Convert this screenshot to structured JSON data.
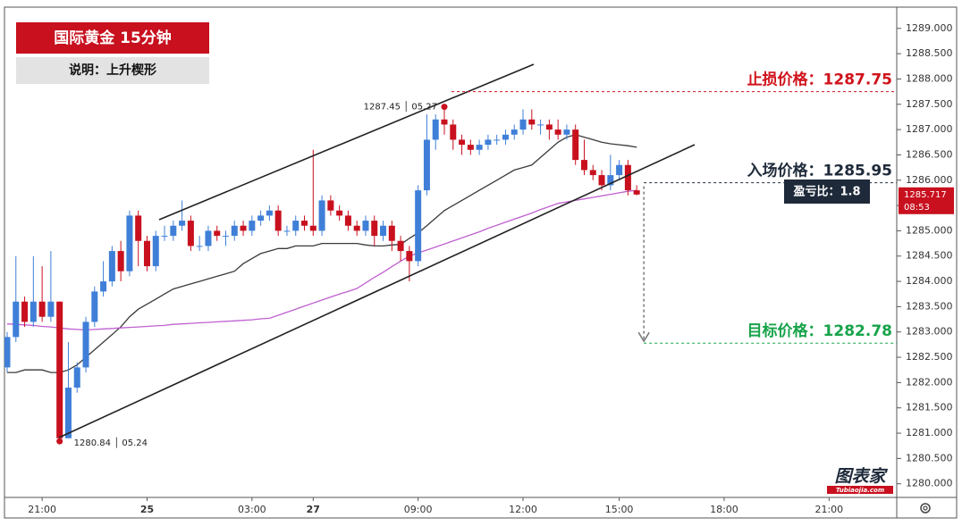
{
  "chart_data": {
    "type": "candlestick",
    "title": "国际黄金 15分钟",
    "subtitle": "说明：上升楔形",
    "up_color": "#3f7fd8",
    "down_color": "#c8101e",
    "categories": [
      null,
      null,
      null,
      null,
      "21:00",
      null,
      null,
      null,
      null,
      null,
      null,
      null,
      null,
      null,
      null,
      null,
      "25",
      null,
      null,
      null,
      null,
      null,
      null,
      null,
      null,
      null,
      null,
      null,
      "03:00",
      null,
      null,
      null,
      null,
      null,
      null,
      "27",
      null,
      null,
      null,
      null,
      null,
      null,
      null,
      null,
      null,
      null,
      null,
      "09:00",
      null,
      null,
      null,
      null,
      null,
      null,
      null,
      null,
      null,
      null,
      null,
      "12:00",
      null,
      null,
      null,
      null,
      null,
      null,
      null,
      null,
      null,
      null,
      "15:00",
      null,
      null,
      null,
      null,
      null,
      null,
      null,
      null,
      null,
      null,
      null,
      "18:00",
      null,
      null,
      null,
      null,
      null,
      null,
      null,
      null,
      null,
      null,
      null,
      "21:00"
    ],
    "open": [
      1282.3,
      1282.9,
      1283.6,
      1283.2,
      1283.6,
      1283.3,
      1283.6,
      1280.9,
      1281.9,
      1282.3,
      1283.2,
      1283.8,
      1284.0,
      1284.6,
      1284.2,
      1285.3,
      1284.8,
      1284.3,
      1284.9,
      1284.9,
      1285.1,
      1285.2,
      1284.7,
      1284.7,
      1285.0,
      1284.9,
      1284.9,
      1285.1,
      1285.0,
      1285.2,
      1285.3,
      1285.4,
      1285.0,
      1285.0,
      1285.2,
      1285.1,
      1285.0,
      1285.6,
      1285.4,
      1285.3,
      1285.1,
      1285.0,
      1285.2,
      1284.9,
      1285.1,
      1284.8,
      1284.6,
      1284.4,
      1285.8,
      1286.8,
      1287.2,
      1287.1,
      1286.8,
      1286.7,
      1286.6,
      1286.7,
      1286.8,
      1286.8,
      1286.9,
      1287.0,
      1287.2,
      1287.1,
      1287.1,
      1287.0,
      1286.9,
      1287.0,
      1286.4,
      1286.2,
      1286.1,
      1285.9,
      1286.1,
      1286.3,
      1285.8,
      null,
      null,
      null,
      null,
      null,
      null,
      null,
      null,
      null,
      null,
      null,
      null,
      null,
      null,
      null,
      null,
      null,
      null,
      null,
      null,
      null,
      null
    ],
    "high": [
      1283.0,
      1284.5,
      1283.7,
      1284.5,
      1284.3,
      1284.6,
      1283.6,
      1282.8,
      1282.4,
      1283.3,
      1283.9,
      1284.4,
      1284.7,
      1284.8,
      1285.4,
      1285.4,
      1284.9,
      1285.0,
      1285.1,
      1285.2,
      1285.6,
      1285.3,
      1284.9,
      1285.1,
      1285.1,
      1285.0,
      1285.2,
      1285.2,
      1285.3,
      1285.4,
      1285.5,
      1285.5,
      1285.1,
      1285.3,
      1285.3,
      1286.6,
      1285.7,
      1285.7,
      1285.5,
      1285.4,
      1285.2,
      1285.3,
      1285.3,
      1285.2,
      1285.2,
      1284.9,
      1284.7,
      1285.9,
      1287.3,
      1287.3,
      1287.45,
      1287.2,
      1286.9,
      1286.8,
      1286.8,
      1286.9,
      1286.9,
      1287.0,
      1287.1,
      1287.4,
      1287.4,
      1287.2,
      1287.2,
      1287.2,
      1287.1,
      1287.1,
      1286.8,
      1286.3,
      1286.2,
      1286.5,
      1286.4,
      1286.4,
      1285.9,
      null,
      null,
      null,
      null,
      null,
      null,
      null,
      null,
      null,
      null,
      null,
      null,
      null,
      null,
      null,
      null,
      null,
      null,
      null,
      null,
      null,
      null
    ],
    "low": [
      1282.2,
      1282.8,
      1283.1,
      1283.1,
      1283.2,
      1283.2,
      1280.84,
      1280.9,
      1281.8,
      1282.2,
      1283.1,
      1283.7,
      1283.9,
      1284.0,
      1284.1,
      1284.3,
      1284.2,
      1284.2,
      1284.8,
      1284.8,
      1285.0,
      1284.6,
      1284.6,
      1284.6,
      1284.8,
      1284.7,
      1284.8,
      1284.9,
      1284.9,
      1285.1,
      1285.2,
      1284.9,
      1284.9,
      1284.9,
      1285.0,
      1284.9,
      1284.9,
      1285.3,
      1285.2,
      1285.0,
      1284.9,
      1284.9,
      1284.7,
      1284.8,
      1284.6,
      1284.4,
      1284.0,
      1284.3,
      1285.7,
      1286.6,
      1286.9,
      1286.6,
      1286.5,
      1286.5,
      1286.5,
      1286.6,
      1286.7,
      1286.7,
      1286.8,
      1286.9,
      1287.0,
      1286.9,
      1286.8,
      1286.8,
      1286.8,
      1286.3,
      1286.1,
      1286.0,
      1285.8,
      1285.8,
      1286.0,
      1285.7,
      1285.7,
      null,
      null,
      null,
      null,
      null,
      null,
      null,
      null,
      null,
      null,
      null,
      null,
      null,
      null,
      null,
      null,
      null,
      null,
      null,
      null,
      null,
      null
    ],
    "close": [
      1282.9,
      1283.6,
      1283.2,
      1283.6,
      1283.3,
      1283.6,
      1280.9,
      1281.9,
      1282.3,
      1283.2,
      1283.8,
      1284.0,
      1284.6,
      1284.2,
      1285.3,
      1284.8,
      1284.3,
      1284.9,
      1284.9,
      1285.1,
      1285.2,
      1284.7,
      1284.7,
      1285.0,
      1284.9,
      1284.9,
      1285.1,
      1285.0,
      1285.2,
      1285.3,
      1285.4,
      1285.0,
      1285.0,
      1285.2,
      1285.1,
      1285.0,
      1285.6,
      1285.4,
      1285.3,
      1285.1,
      1285.0,
      1285.2,
      1284.9,
      1285.1,
      1284.8,
      1284.6,
      1284.4,
      1285.8,
      1286.8,
      1287.2,
      1287.1,
      1286.8,
      1286.7,
      1286.6,
      1286.7,
      1286.8,
      1286.8,
      1286.9,
      1287.0,
      1287.2,
      1287.1,
      1287.1,
      1287.0,
      1286.9,
      1287.0,
      1286.4,
      1286.2,
      1286.1,
      1285.9,
      1286.1,
      1286.3,
      1285.8,
      1285.717,
      null,
      null,
      null,
      null,
      null,
      null,
      null,
      null,
      null,
      null,
      null,
      null,
      null,
      null,
      null,
      null,
      null,
      null,
      null,
      null,
      null,
      null
    ],
    "series": [
      {
        "color": "#3a3a3a",
        "values": [
          1282.2,
          1282.2,
          1282.25,
          1282.25,
          1282.25,
          1282.2,
          1282.2,
          1282.25,
          1282.35,
          1282.5,
          1282.65,
          1282.8,
          1282.95,
          1283.1,
          1283.3,
          1283.45,
          1283.55,
          1283.65,
          1283.75,
          1283.85,
          1283.9,
          1283.95,
          1284.0,
          1284.05,
          1284.1,
          1284.15,
          1284.2,
          1284.35,
          1284.45,
          1284.55,
          1284.6,
          1284.65,
          1284.65,
          1284.7,
          1284.7,
          1284.7,
          1284.75,
          1284.75,
          1284.75,
          1284.75,
          1284.75,
          1284.72,
          1284.7,
          1284.7,
          1284.72,
          1284.73,
          1284.85,
          1284.96,
          1285.1,
          1285.25,
          1285.4,
          1285.5,
          1285.6,
          1285.7,
          1285.8,
          1285.9,
          1286.0,
          1286.1,
          1286.2,
          1286.25,
          1286.3,
          1286.45,
          1286.6,
          1286.75,
          1286.85,
          1286.9,
          1286.85,
          1286.8,
          1286.75,
          1286.72,
          1286.7,
          1286.68,
          1286.65,
          null,
          null,
          null,
          null,
          null,
          null,
          null,
          null,
          null,
          null,
          null,
          null,
          null,
          null,
          null,
          null,
          null,
          null,
          null,
          null,
          null,
          null
        ]
      },
      {
        "color": "#c060d0",
        "values": [
          1283.16,
          1283.15,
          1283.14,
          1283.13,
          1283.11,
          1283.1,
          1283.08,
          1283.06,
          1283.05,
          1283.04,
          1283.05,
          1283.06,
          1283.07,
          1283.08,
          1283.09,
          1283.1,
          1283.11,
          1283.12,
          1283.13,
          1283.15,
          1283.16,
          1283.17,
          1283.18,
          1283.19,
          1283.2,
          1283.21,
          1283.22,
          1283.23,
          1283.24,
          1283.26,
          1283.27,
          1283.33,
          1283.39,
          1283.45,
          1283.51,
          1283.57,
          1283.63,
          1283.69,
          1283.75,
          1283.8,
          1283.86,
          1283.97,
          1284.08,
          1284.18,
          1284.29,
          1284.4,
          1284.5,
          1284.56,
          1284.62,
          1284.68,
          1284.74,
          1284.8,
          1284.86,
          1284.92,
          1284.98,
          1285.05,
          1285.11,
          1285.17,
          1285.23,
          1285.29,
          1285.35,
          1285.42,
          1285.48,
          1285.54,
          1285.57,
          1285.6,
          1285.63,
          1285.66,
          1285.69,
          1285.72,
          1285.75,
          1285.78,
          1285.8,
          null,
          null,
          null,
          null,
          null,
          null,
          null,
          null,
          null,
          null,
          null,
          null,
          null,
          null,
          null,
          null,
          null,
          null,
          null,
          null,
          null,
          null
        ]
      }
    ],
    "ylim": [
      1279.73,
      1289.42
    ],
    "yticks": [
      {
        "value": 1280,
        "label": "1280.000"
      },
      {
        "value": 1280.5,
        "label": "1280.500"
      },
      {
        "value": 1281,
        "label": "1281.000"
      },
      {
        "value": 1281.5,
        "label": "1281.500"
      },
      {
        "value": 1282,
        "label": "1282.000"
      },
      {
        "value": 1282.5,
        "label": "1282.500"
      },
      {
        "value": 1283,
        "label": "1283.000"
      },
      {
        "value": 1283.5,
        "label": "1283.500"
      },
      {
        "value": 1284,
        "label": "1284.000"
      },
      {
        "value": 1284.5,
        "label": "1284.500"
      },
      {
        "value": 1285,
        "label": "1285.000"
      },
      {
        "value": 1285.5,
        "label": "1285.500"
      },
      {
        "value": 1286,
        "label": "1286.000"
      },
      {
        "value": 1286.5,
        "label": "1286.500"
      },
      {
        "value": 1287,
        "label": "1287.000"
      },
      {
        "value": 1287.5,
        "label": "1287.500"
      },
      {
        "value": 1288,
        "label": "1288.000"
      },
      {
        "value": 1288.5,
        "label": "1288.500"
      },
      {
        "value": 1289,
        "label": "1289.000"
      }
    ],
    "levels": [
      {
        "label": "止损价格：1287.75",
        "value": 1287.75,
        "color": "#d0121b"
      },
      {
        "label": "入场价格：1285.95",
        "value": 1285.95,
        "color": "#1e2a3a"
      },
      {
        "label": "目标价格：1282.78",
        "value": 1282.78,
        "color": "#17a34a"
      }
    ],
    "ratio_label": "盈亏比：1.8",
    "high_annotation": "1287.45 │ 05.27",
    "low_annotation": "1280.84 │ 05.24",
    "last_price": 1285.717,
    "countdown": "08:53",
    "watermark": "图表家",
    "watermark_url": "Tubiaojia.com"
  }
}
